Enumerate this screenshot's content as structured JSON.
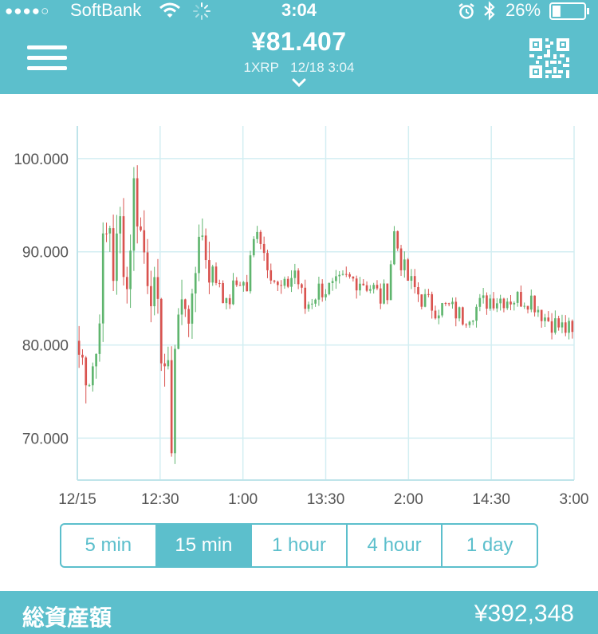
{
  "status_bar": {
    "signal_dots": "●●●●○",
    "carrier": "SoftBank",
    "wifi_icon": "wifi-icon",
    "loading_icon": "activity-spinner-icon",
    "time": "3:04",
    "alarm_icon": "alarm-icon",
    "bluetooth_icon": "bluetooth-icon",
    "battery_text": "26%",
    "battery_level": 0.26
  },
  "header": {
    "menu_icon": "hamburger-menu-icon",
    "price": "¥81.407",
    "pair": "1XRP",
    "datetime": "12/18 3:04",
    "chevron_icon": "chevron-down-icon",
    "qr_icon": "qr-code-icon"
  },
  "chart_data": {
    "type": "candlestick",
    "title": "",
    "xlabel": "",
    "ylabel": "",
    "ylim": [
      65.5,
      103.5
    ],
    "y_ticks": [
      "100.000",
      "90.000",
      "80.000",
      "70.000"
    ],
    "y_tick_values": [
      100,
      90,
      80,
      70
    ],
    "x_ticks": [
      "12/15",
      "12:30",
      "1:00",
      "13:30",
      "2:00",
      "14:30",
      "3:00"
    ],
    "grid": true,
    "up_color": "#5fb56e",
    "down_color": "#d9534f",
    "close_anchors": [
      [
        0,
        79
      ],
      [
        3,
        77
      ],
      [
        5,
        79
      ],
      [
        7,
        90
      ],
      [
        9,
        93
      ],
      [
        10,
        88
      ],
      [
        12,
        93
      ],
      [
        14,
        86
      ],
      [
        16,
        97
      ],
      [
        18,
        92
      ],
      [
        20,
        88
      ],
      [
        22,
        85
      ],
      [
        24,
        80
      ],
      [
        26,
        76
      ],
      [
        27,
        70
      ],
      [
        28,
        80
      ],
      [
        29,
        83
      ],
      [
        31,
        85
      ],
      [
        33,
        83
      ],
      [
        35,
        93
      ],
      [
        37,
        90
      ],
      [
        39,
        87
      ],
      [
        41,
        87
      ],
      [
        43,
        84
      ],
      [
        45,
        86
      ],
      [
        47,
        87
      ],
      [
        49,
        86
      ],
      [
        50,
        89
      ],
      [
        52,
        93
      ],
      [
        54,
        90
      ],
      [
        56,
        88
      ],
      [
        58,
        86
      ],
      [
        60,
        86
      ],
      [
        63,
        88
      ],
      [
        66,
        84
      ],
      [
        70,
        86
      ],
      [
        74,
        86
      ],
      [
        78,
        87
      ],
      [
        82,
        87
      ],
      [
        86,
        86
      ],
      [
        88,
        85
      ],
      [
        90,
        86
      ],
      [
        92,
        92
      ],
      [
        94,
        89
      ],
      [
        96,
        87
      ],
      [
        100,
        85
      ],
      [
        104,
        84
      ],
      [
        108,
        84
      ],
      [
        112,
        83
      ],
      [
        116,
        84
      ],
      [
        120,
        85
      ],
      [
        124,
        85
      ],
      [
        128,
        85
      ],
      [
        132,
        85
      ],
      [
        136,
        83
      ],
      [
        140,
        82
      ],
      [
        144,
        81.4
      ]
    ],
    "count": 145
  },
  "timeframes": {
    "options": [
      "5 min",
      "15 min",
      "1 hour",
      "4 hour",
      "1 day"
    ],
    "selected": "15 min"
  },
  "footer": {
    "label": "総資産額",
    "value": "¥392,348"
  },
  "colors": {
    "accent": "#5cbfcc",
    "up": "#5fb56e",
    "down": "#d9534f",
    "grid": "#d3eef2"
  }
}
